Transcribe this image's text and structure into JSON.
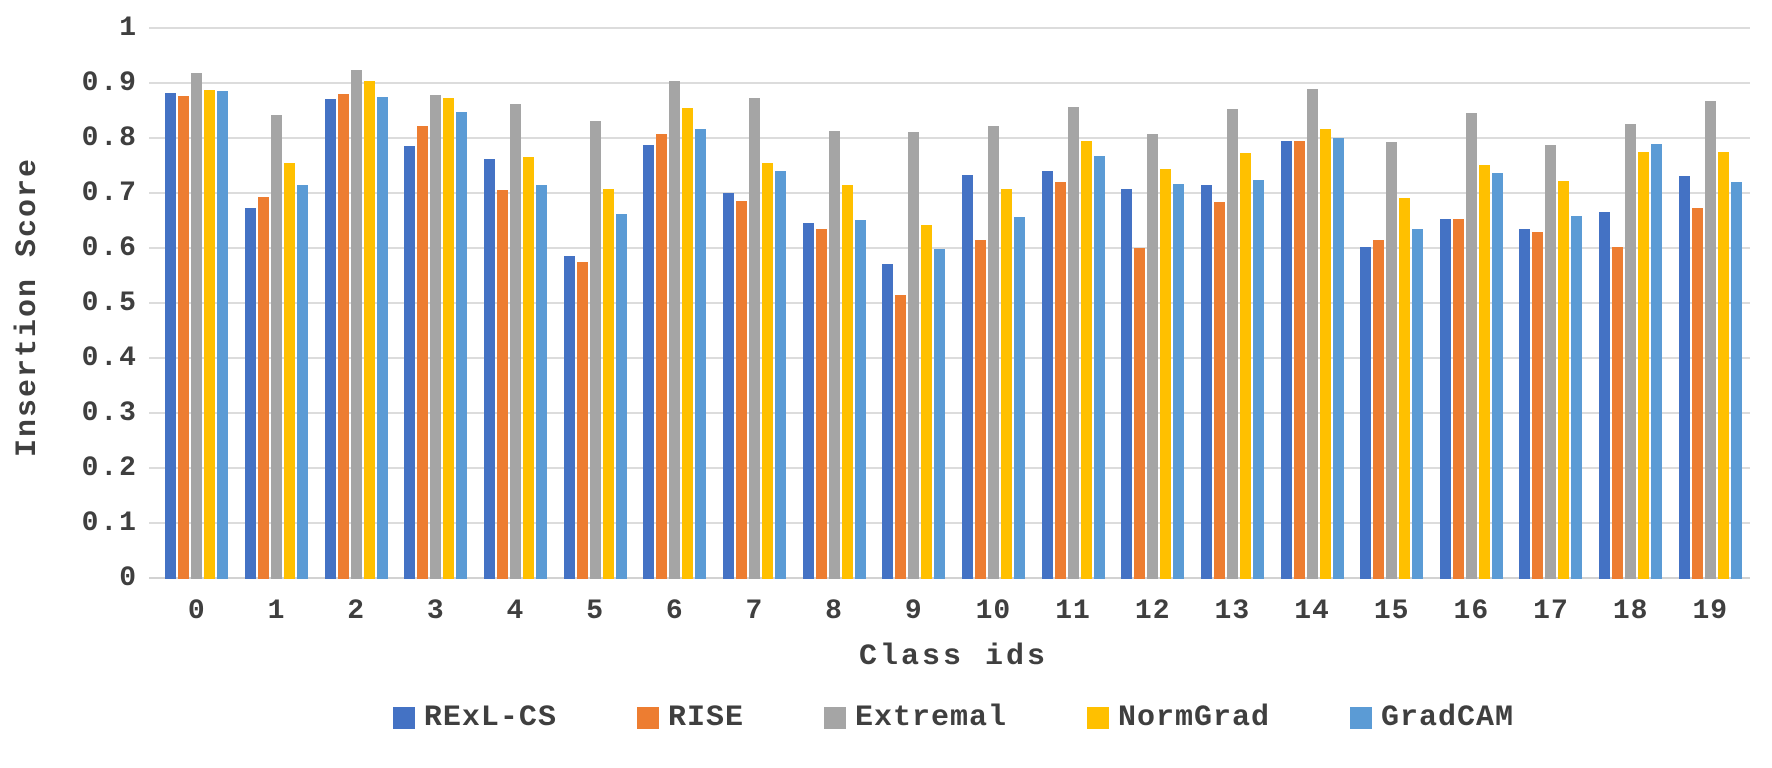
{
  "chart_data": {
    "type": "bar",
    "title": "",
    "xlabel": "Class ids",
    "ylabel": "Insertion Score",
    "ylim": [
      0,
      1
    ],
    "grid": true,
    "legend_position": "bottom",
    "ytick_labels": [
      "0",
      "0.1",
      "0.2",
      "0.3",
      "0.4",
      "0.5",
      "0.6",
      "0.7",
      "0.8",
      "0.9",
      "1"
    ],
    "categories": [
      "0",
      "1",
      "2",
      "3",
      "4",
      "5",
      "6",
      "7",
      "8",
      "9",
      "10",
      "11",
      "12",
      "13",
      "14",
      "15",
      "16",
      "17",
      "18",
      "19"
    ],
    "series": [
      {
        "name": "RExL-CS",
        "color": "#4472C4",
        "values": [
          0.883,
          0.674,
          0.872,
          0.787,
          0.763,
          0.588,
          0.789,
          0.702,
          0.648,
          0.572,
          0.734,
          0.741,
          0.709,
          0.716,
          0.797,
          0.603,
          0.654,
          0.636,
          0.667,
          0.732
        ]
      },
      {
        "name": "RISE",
        "color": "#ED7D31",
        "values": [
          0.878,
          0.695,
          0.882,
          0.824,
          0.707,
          0.576,
          0.809,
          0.687,
          0.636,
          0.516,
          0.616,
          0.721,
          0.601,
          0.685,
          0.797,
          0.616,
          0.654,
          0.631,
          0.603,
          0.675
        ]
      },
      {
        "name": "Extremal",
        "color": "#A5A5A5",
        "values": [
          0.92,
          0.843,
          0.925,
          0.88,
          0.863,
          0.833,
          0.905,
          0.874,
          0.815,
          0.813,
          0.824,
          0.859,
          0.81,
          0.855,
          0.891,
          0.795,
          0.847,
          0.789,
          0.827,
          0.869
        ]
      },
      {
        "name": "NormGrad",
        "color": "#FFC000",
        "values": [
          0.89,
          0.756,
          0.905,
          0.875,
          0.768,
          0.71,
          0.856,
          0.757,
          0.716,
          0.643,
          0.709,
          0.796,
          0.745,
          0.774,
          0.818,
          0.692,
          0.753,
          0.723,
          0.776,
          0.777
        ]
      },
      {
        "name": "GradCAM",
        "color": "#5B9BD5",
        "values": [
          0.888,
          0.716,
          0.876,
          0.85,
          0.716,
          0.664,
          0.818,
          0.742,
          0.652,
          0.6,
          0.658,
          0.769,
          0.719,
          0.726,
          0.801,
          0.637,
          0.739,
          0.66,
          0.791,
          0.722
        ]
      }
    ],
    "colors": {
      "text": "#3f3f3f",
      "gridline": "#dcdcdc",
      "background": "#ffffff"
    }
  }
}
